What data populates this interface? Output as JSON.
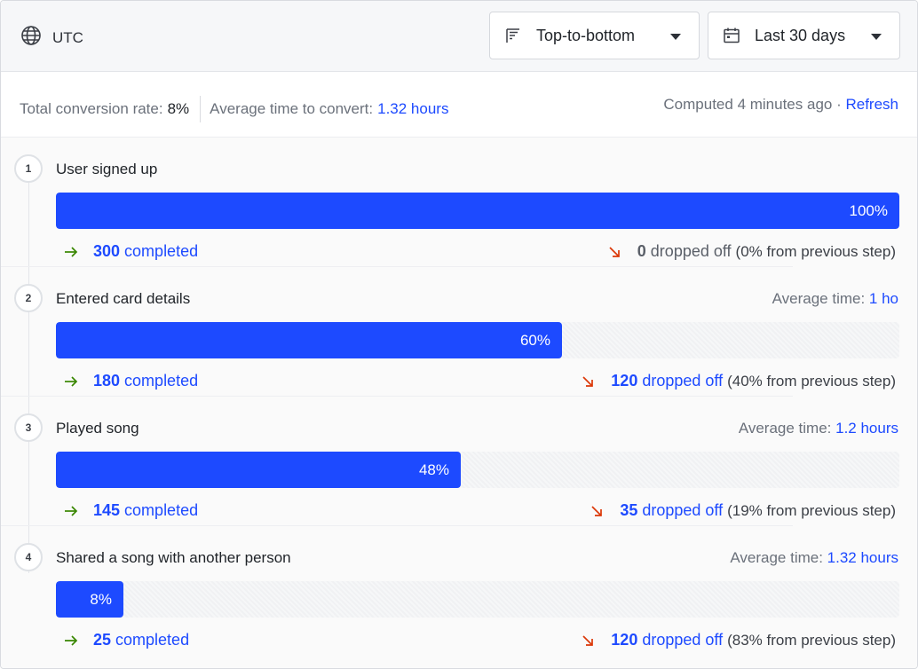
{
  "toolbar": {
    "timezone": "UTC",
    "order_label": "Top-to-bottom",
    "date_label": "Last 30 days"
  },
  "summary": {
    "conversion_label": "Total conversion rate:",
    "conversion_value": "8%",
    "avg_label": "Average time to convert:",
    "avg_value": "1.32 hours",
    "computed": "Computed 4 minutes ago · ",
    "refresh": "Refresh"
  },
  "colors": {
    "accent": "#1d4aff",
    "success": "#388600",
    "danger": "#db3707"
  },
  "steps": [
    {
      "number": "1",
      "name": "User signed up",
      "avg_label": "",
      "avg_value": "",
      "percent": "100%",
      "fraction": 1.0,
      "completed": "300",
      "completed_label": "completed",
      "dropped": "0",
      "dropped_label": "dropped off",
      "drop_pct": "(0% from previous step)"
    },
    {
      "number": "2",
      "name": "Entered card details",
      "avg_label": "Average time: ",
      "avg_value": "1 ho",
      "percent": "60%",
      "fraction": 0.6,
      "completed": "180",
      "completed_label": "completed",
      "dropped": "120",
      "dropped_label": "dropped off",
      "drop_pct": "(40% from previous step)"
    },
    {
      "number": "3",
      "name": "Played song",
      "avg_label": "Average time: ",
      "avg_value": "1.2 hours",
      "percent": "48%",
      "fraction": 0.48,
      "completed": "145",
      "completed_label": "completed",
      "dropped": "35",
      "dropped_label": "dropped off",
      "drop_pct": "(19% from previous step)"
    },
    {
      "number": "4",
      "name": "Shared a song with another person",
      "avg_label": "Average time: ",
      "avg_value": "1.32 hours",
      "percent": "8%",
      "fraction": 0.08,
      "completed": "25",
      "completed_label": "completed",
      "dropped": "120",
      "dropped_label": "dropped off",
      "drop_pct": "(83% from previous step)"
    }
  ]
}
